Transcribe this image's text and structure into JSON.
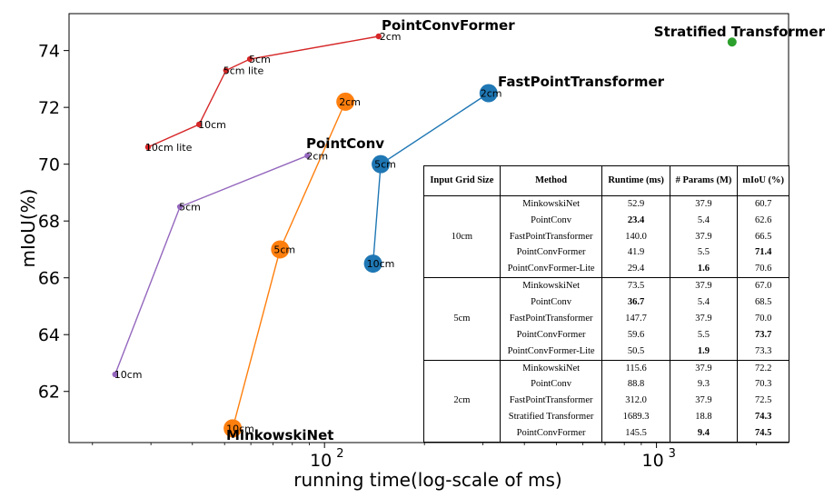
{
  "chart_data": {
    "type": "scatter",
    "xlabel": "running time(log-scale of ms)",
    "ylabel": "mIoU(%)",
    "xscale": "log",
    "xticks": [
      {
        "value": 100,
        "base": "10",
        "exp": "2"
      },
      {
        "value": 1000,
        "base": "10",
        "exp": "3"
      }
    ],
    "yticks": [
      62,
      64,
      66,
      68,
      70,
      72,
      74
    ],
    "xlim": [
      17,
      2500
    ],
    "ylim": [
      60.2,
      75.3
    ],
    "series": [
      {
        "name": "PointConvFormer",
        "color": "#d62728",
        "size": "small",
        "connected": true,
        "points": [
          {
            "x": 29.4,
            "y": 70.6,
            "label": "10cm lite"
          },
          {
            "x": 41.9,
            "y": 71.4,
            "label": "10cm"
          },
          {
            "x": 50.5,
            "y": 73.3,
            "label": "5cm lite"
          },
          {
            "x": 59.6,
            "y": 73.7,
            "label": "5cm"
          },
          {
            "x": 145.5,
            "y": 74.5,
            "label": "2cm"
          }
        ]
      },
      {
        "name": "PointConv",
        "color": "#9467bd",
        "size": "small",
        "connected": true,
        "points": [
          {
            "x": 23.4,
            "y": 62.6,
            "label": "10cm"
          },
          {
            "x": 36.7,
            "y": 68.5,
            "label": "5cm"
          },
          {
            "x": 88.8,
            "y": 70.3,
            "label": "2cm"
          }
        ]
      },
      {
        "name": "MinkowskiNet",
        "color": "#ff7f0e",
        "size": "large",
        "connected": true,
        "points": [
          {
            "x": 52.9,
            "y": 60.7,
            "label": "10cm"
          },
          {
            "x": 73.5,
            "y": 67.0,
            "label": "5cm"
          },
          {
            "x": 115.6,
            "y": 72.2,
            "label": "2cm"
          }
        ]
      },
      {
        "name": "FastPointTransformer",
        "color": "#1f77b4",
        "size": "large",
        "connected": true,
        "points": [
          {
            "x": 140.0,
            "y": 66.5,
            "label": "10cm"
          },
          {
            "x": 147.7,
            "y": 70.0,
            "label": "5cm"
          },
          {
            "x": 312.0,
            "y": 72.5,
            "label": "2cm"
          }
        ]
      },
      {
        "name": "Stratified Transformer",
        "color": "#2ca02c",
        "size": "small",
        "connected": false,
        "points": [
          {
            "x": 1689.3,
            "y": 74.3,
            "label": ""
          }
        ]
      }
    ]
  },
  "table": {
    "headers": [
      "Input Grid Size",
      "Method",
      "Runtime (ms)",
      "# Params (M)",
      "mIoU (%)"
    ],
    "groups": [
      {
        "grid": "10cm",
        "rows": [
          {
            "method": "MinkowskiNet",
            "runtime": "52.9",
            "params": "37.9",
            "miou": "60.7",
            "bold": []
          },
          {
            "method": "PointConv",
            "runtime": "23.4",
            "params": "5.4",
            "miou": "62.6",
            "bold": [
              "runtime"
            ]
          },
          {
            "method": "FastPointTransformer",
            "runtime": "140.0",
            "params": "37.9",
            "miou": "66.5",
            "bold": []
          },
          {
            "method": "PointConvFormer",
            "runtime": "41.9",
            "params": "5.5",
            "miou": "71.4",
            "bold": [
              "miou"
            ]
          },
          {
            "method": "PointConvFormer-Lite",
            "runtime": "29.4",
            "params": "1.6",
            "miou": "70.6",
            "bold": [
              "params"
            ]
          }
        ]
      },
      {
        "grid": "5cm",
        "rows": [
          {
            "method": "MinkowskiNet",
            "runtime": "73.5",
            "params": "37.9",
            "miou": "67.0",
            "bold": []
          },
          {
            "method": "PointConv",
            "runtime": "36.7",
            "params": "5.4",
            "miou": "68.5",
            "bold": [
              "runtime"
            ]
          },
          {
            "method": "FastPointTransformer",
            "runtime": "147.7",
            "params": "37.9",
            "miou": "70.0",
            "bold": []
          },
          {
            "method": "PointConvFormer",
            "runtime": "59.6",
            "params": "5.5",
            "miou": "73.7",
            "bold": [
              "miou"
            ]
          },
          {
            "method": "PointConvFormer-Lite",
            "runtime": "50.5",
            "params": "1.9",
            "miou": "73.3",
            "bold": [
              "params"
            ]
          }
        ]
      },
      {
        "grid": "2cm",
        "rows": [
          {
            "method": "MinkowskiNet",
            "runtime": "115.6",
            "params": "37.9",
            "miou": "72.2",
            "bold": []
          },
          {
            "method": "PointConv",
            "runtime": "88.8",
            "params": "9.3",
            "miou": "70.3",
            "bold": []
          },
          {
            "method": "FastPointTransformer",
            "runtime": "312.0",
            "params": "37.9",
            "miou": "72.5",
            "bold": []
          },
          {
            "method": "Stratified Transformer",
            "runtime": "1689.3",
            "params": "18.8",
            "miou": "74.3",
            "bold": [
              "miou"
            ]
          },
          {
            "method": "PointConvFormer",
            "runtime": "145.5",
            "params": "9.4",
            "miou": "74.5",
            "bold": [
              "params",
              "miou"
            ]
          }
        ]
      }
    ]
  }
}
